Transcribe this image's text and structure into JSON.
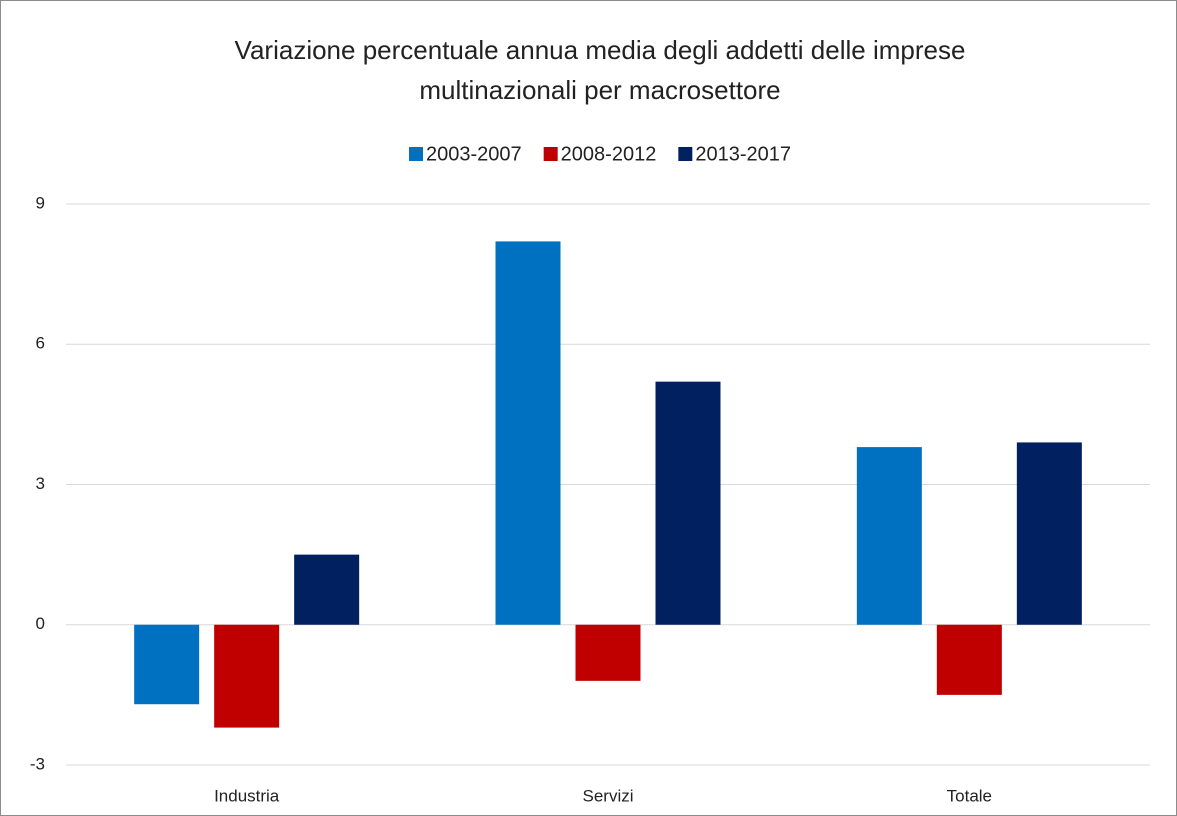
{
  "chart_data": {
    "type": "bar",
    "title": [
      "Variazione percentuale annua media degli addetti delle imprese",
      "multinazionali per macrosettore"
    ],
    "categories": [
      "Industria",
      "Servizi",
      "Totale"
    ],
    "series": [
      {
        "name": "2003-2007",
        "color": "#0070c0",
        "values": [
          -1.7,
          8.2,
          3.8
        ]
      },
      {
        "name": "2008-2012",
        "color": "#c00000",
        "values": [
          -2.2,
          -1.2,
          -1.5
        ]
      },
      {
        "name": "2013-2017",
        "color": "#002060",
        "values": [
          1.5,
          5.2,
          3.9
        ]
      }
    ],
    "ylim": [
      -3,
      9
    ],
    "yticks": [
      -3,
      0,
      3,
      6,
      9
    ],
    "grid": true,
    "legend": "top"
  }
}
